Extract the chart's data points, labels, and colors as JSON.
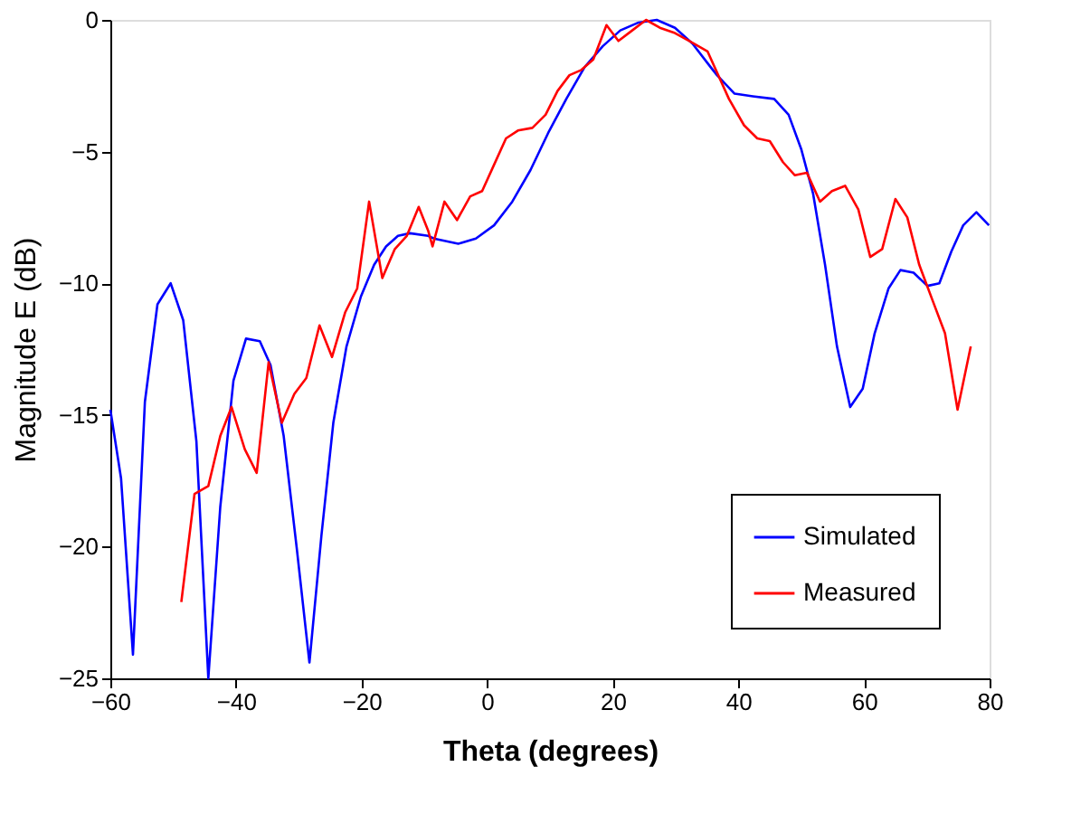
{
  "chart_data": {
    "type": "line",
    "xlabel": "Theta (degrees)",
    "ylabel": "Magnitude E (dB)",
    "xlim": [
      -60,
      80
    ],
    "xticks": [
      -60,
      -40,
      -20,
      0,
      20,
      40,
      60,
      80
    ],
    "ylim": [
      -25,
      0
    ],
    "yticks": [
      -25,
      -20,
      -15,
      -10,
      -5,
      0
    ],
    "grid": false,
    "legend": "bottom right",
    "line_style": "solid",
    "marker": "none",
    "series": [
      {
        "name": "Simulated",
        "color": "#0000ff",
        "x": [
          -60,
          -58.3,
          -56.4,
          -54.5,
          -52.5,
          -50.4,
          -48.4,
          -46.3,
          -44.4,
          -42.5,
          -40.4,
          -38.4,
          -36.2,
          -34.5,
          -32.4,
          -30.3,
          -28.3,
          -26.4,
          -24.5,
          -22.4,
          -20.1,
          -18,
          -16.1,
          -14.2,
          -12.3,
          -9.4,
          -8.5,
          -4.6,
          -1.8,
          1.1,
          4,
          6.9,
          9.7,
          12.6,
          15.5,
          18.4,
          21.2,
          24.1,
          27,
          29.9,
          32.7,
          35.6,
          36.6,
          39.4,
          42.3,
          45.7,
          48,
          50,
          51.9,
          53.8,
          55.7,
          57.8,
          59.8,
          61.7,
          63.9,
          65.8,
          67.9,
          70.1,
          72,
          73.9,
          75.8,
          77.9,
          79.9
        ],
        "values": [
          -14.8,
          -17.4,
          -24.1,
          -14.5,
          -10.8,
          -10,
          -11.4,
          -16,
          -25,
          -18.5,
          -13.7,
          -12.1,
          -12.2,
          -13.1,
          -15.8,
          -20.1,
          -24.4,
          -19.6,
          -15.3,
          -12.4,
          -10.5,
          -9.3,
          -8.6,
          -8.2,
          -8.1,
          -8.2,
          -8.3,
          -8.5,
          -8.3,
          -7.8,
          -6.9,
          -5.7,
          -4.3,
          -3,
          -1.8,
          -1,
          -0.4,
          -0.1,
          0,
          -0.3,
          -0.9,
          -1.8,
          -2.1,
          -2.8,
          -2.9,
          -3,
          -3.6,
          -4.9,
          -6.6,
          -9.3,
          -12.4,
          -14.7,
          -14,
          -11.9,
          -10.2,
          -9.5,
          -9.6,
          -10.1,
          -10,
          -8.8,
          -7.8,
          -7.3,
          -7.8
        ]
      },
      {
        "name": "Measured",
        "color": "#ff0000",
        "x": [
          -48.7,
          -46.6,
          -44.4,
          -42.5,
          -40.7,
          -38.6,
          -36.7,
          -34.8,
          -32.7,
          -30.7,
          -28.8,
          -26.7,
          -24.7,
          -22.6,
          -20.7,
          -18.8,
          -16.7,
          -14.7,
          -12.8,
          -10.9,
          -9.4,
          -8.7,
          -6.8,
          -4.8,
          -2.7,
          -0.8,
          1.1,
          3,
          4.9,
          7.2,
          9.3,
          11.2,
          13.1,
          15,
          16.9,
          19,
          20.9,
          23.1,
          25.3,
          27.5,
          29.9,
          32.2,
          35.1,
          38.5,
          40.9,
          43,
          45,
          47.1,
          49,
          50.9,
          53,
          54.9,
          57,
          59.1,
          61,
          62.9,
          65,
          66.9,
          68.8,
          71,
          72.9,
          74.9,
          77
        ],
        "values": [
          -22.1,
          -18,
          -17.7,
          -15.8,
          -14.7,
          -16.3,
          -17.2,
          -13,
          -15.3,
          -14.2,
          -13.6,
          -11.6,
          -12.8,
          -11.1,
          -10.2,
          -6.9,
          -9.8,
          -8.7,
          -8.2,
          -7.1,
          -8,
          -8.6,
          -6.9,
          -7.6,
          -6.7,
          -6.5,
          -5.5,
          -4.5,
          -4.2,
          -4.1,
          -3.6,
          -2.7,
          -2.1,
          -1.9,
          -1.5,
          -0.2,
          -0.8,
          -0.4,
          0,
          -0.3,
          -0.5,
          -0.8,
          -1.2,
          -3,
          -4,
          -4.5,
          -4.6,
          -5.4,
          -5.9,
          -5.8,
          -6.9,
          -6.5,
          -6.3,
          -7.2,
          -9,
          -8.7,
          -6.8,
          -7.5,
          -9.3,
          -10.7,
          -11.9,
          -14.8,
          -12.4
        ]
      }
    ]
  }
}
